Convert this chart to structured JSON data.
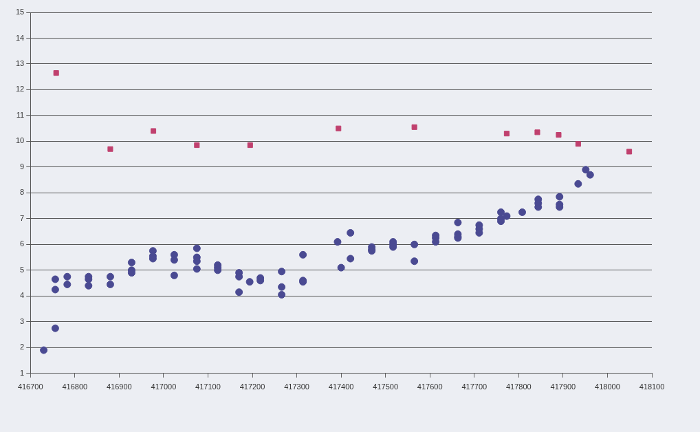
{
  "chart_data": {
    "type": "scatter",
    "xlim": [
      416700,
      418100
    ],
    "xticks": [
      416700,
      416800,
      416900,
      417000,
      417100,
      417200,
      417300,
      417400,
      417500,
      417600,
      417700,
      417800,
      417900,
      418000,
      418100
    ],
    "ylim": [
      1,
      15
    ],
    "yticks": [
      1,
      2,
      3,
      4,
      5,
      6,
      7,
      8,
      9,
      10,
      11,
      12,
      13,
      14,
      15
    ],
    "grid": "y",
    "legend": false,
    "series": [
      {
        "color": "#4a4a92",
        "marker": "circle",
        "x": [
          416730,
          416756,
          416756,
          416756,
          416783,
          416783,
          416831,
          416831,
          416831,
          416880,
          416880,
          416928,
          416928,
          416928,
          416976,
          416976,
          416976,
          417024,
          417024,
          417024,
          417075,
          417075,
          417075,
          417075,
          417122,
          417122,
          417122,
          417170,
          417170,
          417170,
          417194,
          417218,
          417218,
          417266,
          417266,
          417266,
          417314,
          417314,
          417314,
          417392,
          417400,
          417421,
          417421,
          417469,
          417469,
          417469,
          417517,
          417517,
          417517,
          417565,
          417565,
          417613,
          417613,
          417613,
          417663,
          417663,
          417663,
          417663,
          417711,
          417711,
          417711,
          417760,
          417760,
          417760,
          417773,
          417808,
          417844,
          417844,
          417844,
          417892,
          417892,
          417892,
          417934,
          417951,
          417961
        ],
        "values": [
          1.9,
          2.75,
          4.25,
          4.65,
          4.75,
          4.45,
          4.75,
          4.65,
          4.4,
          4.75,
          4.45,
          5.3,
          5.0,
          4.9,
          5.75,
          5.55,
          5.45,
          5.6,
          5.4,
          4.8,
          5.85,
          5.5,
          5.35,
          5.05,
          5.2,
          5.1,
          5.0,
          4.9,
          4.75,
          4.15,
          4.55,
          4.7,
          4.6,
          4.95,
          4.35,
          4.05,
          5.6,
          4.6,
          4.55,
          6.1,
          5.1,
          6.45,
          5.45,
          5.9,
          5.8,
          5.75,
          6.1,
          6.0,
          5.9,
          6.0,
          5.35,
          6.35,
          6.25,
          6.1,
          6.85,
          6.4,
          6.3,
          6.25,
          6.75,
          6.6,
          6.45,
          7.25,
          7.0,
          6.9,
          7.1,
          7.25,
          7.75,
          7.6,
          7.45,
          7.85,
          7.55,
          7.45,
          8.35,
          8.9,
          8.7
        ]
      },
      {
        "color": "#c0406e",
        "marker": "square",
        "x": [
          416758,
          416880,
          416977,
          417075,
          417195,
          417394,
          417565,
          417773,
          417842,
          417890,
          417934,
          418049
        ],
        "values": [
          12.65,
          9.7,
          10.4,
          9.85,
          9.85,
          10.5,
          10.55,
          10.3,
          10.35,
          10.25,
          9.9,
          9.6
        ]
      }
    ]
  }
}
